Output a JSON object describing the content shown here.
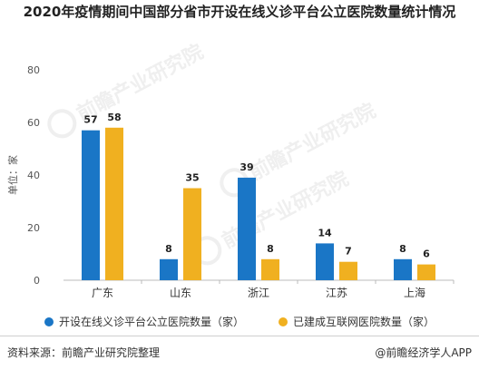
{
  "title": "2020年疫情期间中国部分省市开设在线义诊平台公立医院数量统计情况",
  "watermark": "前瞻产业研究院",
  "source": "资料来源：前瞻产业研究院整理",
  "brand": "@前瞻经济学人APP",
  "colors": {
    "series1": "#1a76c6",
    "series2": "#f0b020"
  },
  "chart_data": {
    "type": "bar",
    "ylabel": "单位：家",
    "ylim": [
      0,
      80
    ],
    "yticks": [
      0,
      20,
      40,
      60,
      80
    ],
    "categories": [
      "广东",
      "山东",
      "浙江",
      "江苏",
      "上海"
    ],
    "series": [
      {
        "name": "开设在线义诊平台公立医院数量（家）",
        "values": [
          57,
          8,
          39,
          14,
          8
        ]
      },
      {
        "name": "已建成互联网医院数量（家）",
        "values": [
          58,
          35,
          8,
          7,
          6
        ]
      }
    ],
    "legend_position": "bottom"
  }
}
